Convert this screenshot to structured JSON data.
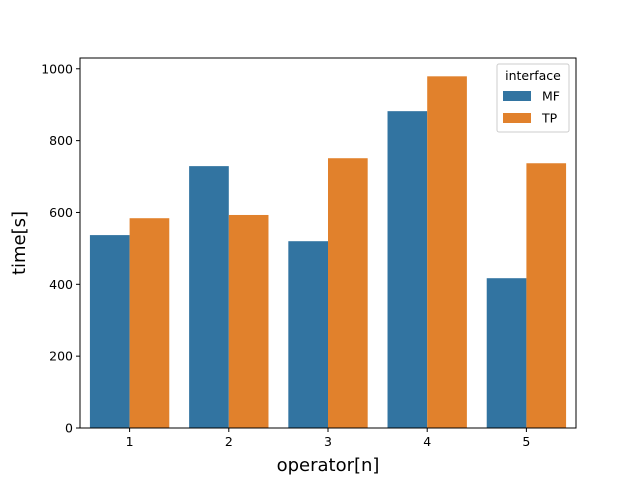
{
  "chart_data": {
    "type": "bar",
    "title": "",
    "xlabel": "operator[n]",
    "ylabel": "time[s]",
    "categories": [
      "1",
      "2",
      "3",
      "4",
      "5"
    ],
    "series": [
      {
        "name": "MF",
        "color": "#3274a1",
        "values": [
          537,
          729,
          520,
          882,
          417
        ]
      },
      {
        "name": "TP",
        "color": "#e1812c",
        "values": [
          584,
          593,
          751,
          979,
          737
        ]
      }
    ],
    "ylim": [
      0,
      1030
    ],
    "yticks": [
      0,
      200,
      400,
      600,
      800,
      1000
    ],
    "legend": {
      "title": "interface",
      "position": "top-right"
    },
    "grid": false
  }
}
